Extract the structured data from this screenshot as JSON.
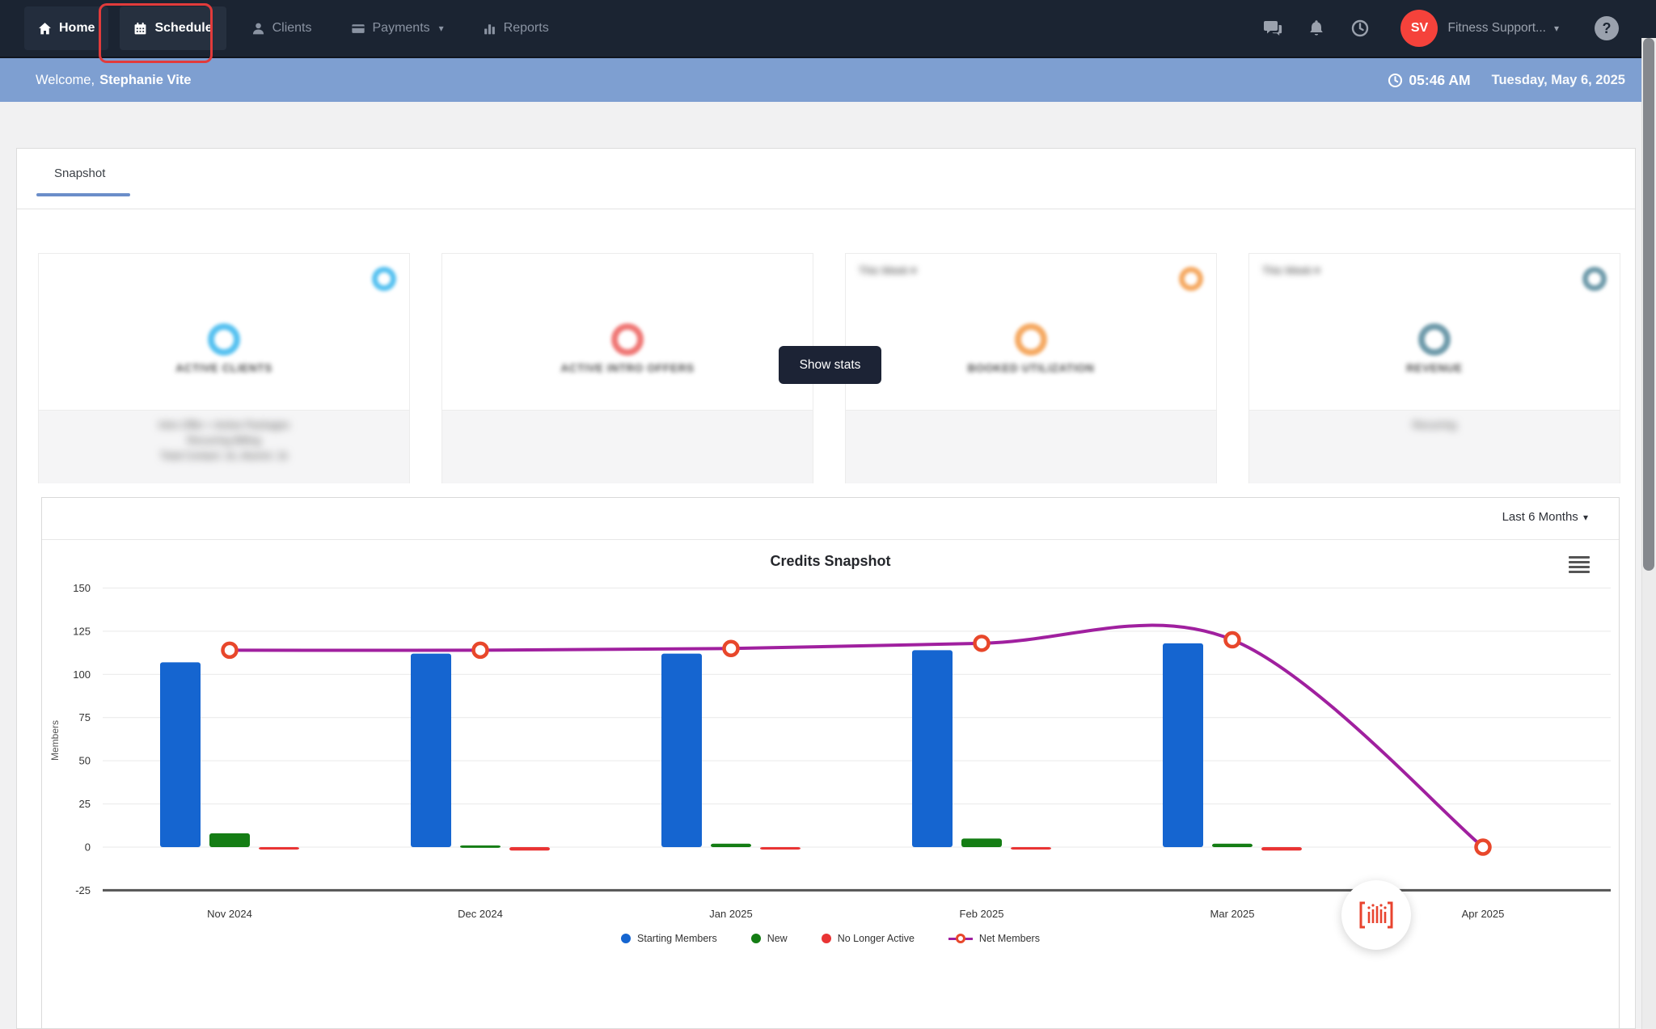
{
  "nav": {
    "items": [
      {
        "label": "Home",
        "icon": "home-icon",
        "state": "active"
      },
      {
        "label": "Schedule",
        "icon": "calendar-icon",
        "state": "highlighted"
      },
      {
        "label": "Clients",
        "icon": "person-icon",
        "state": "default"
      },
      {
        "label": "Payments",
        "icon": "card-icon",
        "state": "default",
        "caret": "▾"
      },
      {
        "label": "Reports",
        "icon": "bar-chart-icon",
        "state": "default"
      }
    ],
    "avatar_initials": "SV",
    "account_label": "Fitness Support...",
    "account_caret": "▾",
    "help_glyph": "?",
    "avatar_color": "#f5423b"
  },
  "welcome_bar": {
    "greeting": "Welcome,",
    "user_name": "Stephanie Vite",
    "time": "05:46 AM",
    "date": "Tuesday, May 6, 2025",
    "background": "#7e9fd1"
  },
  "tabs": {
    "snapshot_label": "Snapshot"
  },
  "overlay": {
    "show_stats_label": "Show stats"
  },
  "cards": [
    {
      "label": "ACTIVE CLIENTS",
      "accent": "#56c1f0",
      "period": "",
      "footer": [
        "Intro Offer + Active Packages",
        "Recurring Billing",
        "Total Contact: 1k, Alumni: 1k"
      ]
    },
    {
      "label": "ACTIVE INTRO OFFERS",
      "accent": "#ef7674",
      "period": "",
      "footer": []
    },
    {
      "label": "BOOKED UTILIZATION",
      "accent": "#f5a962",
      "period": "This Week ▾",
      "footer": []
    },
    {
      "label": "REVENUE",
      "accent": "#6e9aaa",
      "period": "This Week ▾",
      "footer": [
        "Recurring"
      ]
    }
  ],
  "chart_panel": {
    "range_label": "Last 6 Months",
    "range_caret": "▾"
  },
  "chart_data": {
    "type": "bar",
    "title": "Credits Snapshot",
    "ylabel": "Members",
    "categories": [
      "Nov 2024",
      "Dec 2024",
      "Jan 2025",
      "Feb 2025",
      "Mar 2025",
      "Apr 2025"
    ],
    "yticks": [
      150,
      125,
      100,
      75,
      50,
      25,
      0,
      -25
    ],
    "ylim": [
      -25,
      150
    ],
    "grid": true,
    "legend_position": "bottom",
    "series": [
      {
        "name": "Starting Members",
        "type": "bar",
        "color": "#1565d0",
        "values": [
          107,
          112,
          112,
          114,
          118,
          null
        ]
      },
      {
        "name": "New",
        "type": "bar",
        "color": "#147d14",
        "values": [
          8,
          1,
          2,
          5,
          2,
          null
        ]
      },
      {
        "name": "No Longer Active",
        "type": "bar",
        "color": "#e93434",
        "values": [
          -1,
          -2,
          -1,
          -1,
          -2,
          null
        ]
      },
      {
        "name": "Net Members",
        "type": "line",
        "color": "#a0209f",
        "marker_color": "#e8472b",
        "values": [
          114,
          114,
          115,
          118,
          120,
          0
        ]
      }
    ]
  }
}
